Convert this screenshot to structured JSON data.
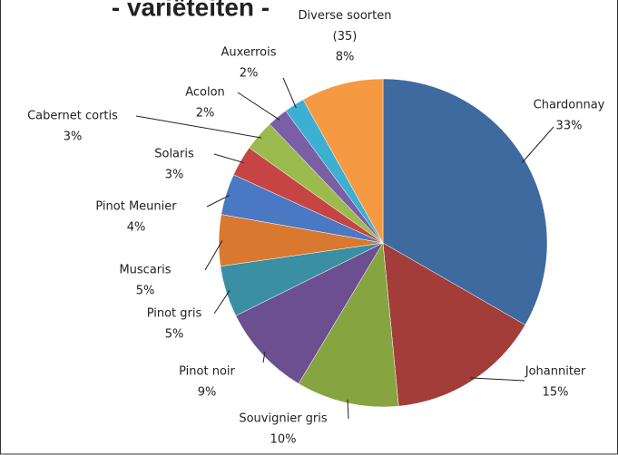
{
  "chart_data": {
    "type": "pie",
    "title": "- variëteiten -",
    "categories": [
      "Chardonnay",
      "Johanniter",
      "Souvignier gris",
      "Pinot noir",
      "Pinot gris",
      "Muscaris",
      "Pinot Meunier",
      "Solaris",
      "Cabernet cortis",
      "Acolon",
      "Auxerrois",
      "Diverse soorten (35)"
    ],
    "values": [
      33,
      15,
      10,
      9,
      5,
      5,
      4,
      3,
      3,
      2,
      2,
      8
    ],
    "value_labels": [
      "33%",
      "15%",
      "10%",
      "9%",
      "5%",
      "5%",
      "4%",
      "3%",
      "3%",
      "2%",
      "2%",
      "8%"
    ],
    "colors": [
      "#3f6aa0",
      "#a23d3a",
      "#86a440",
      "#6c4f91",
      "#3a8fa3",
      "#d8792f",
      "#4a78c2",
      "#c64544",
      "#9bbb4f",
      "#7a5ea6",
      "#3db0d1",
      "#f59a42"
    ]
  }
}
